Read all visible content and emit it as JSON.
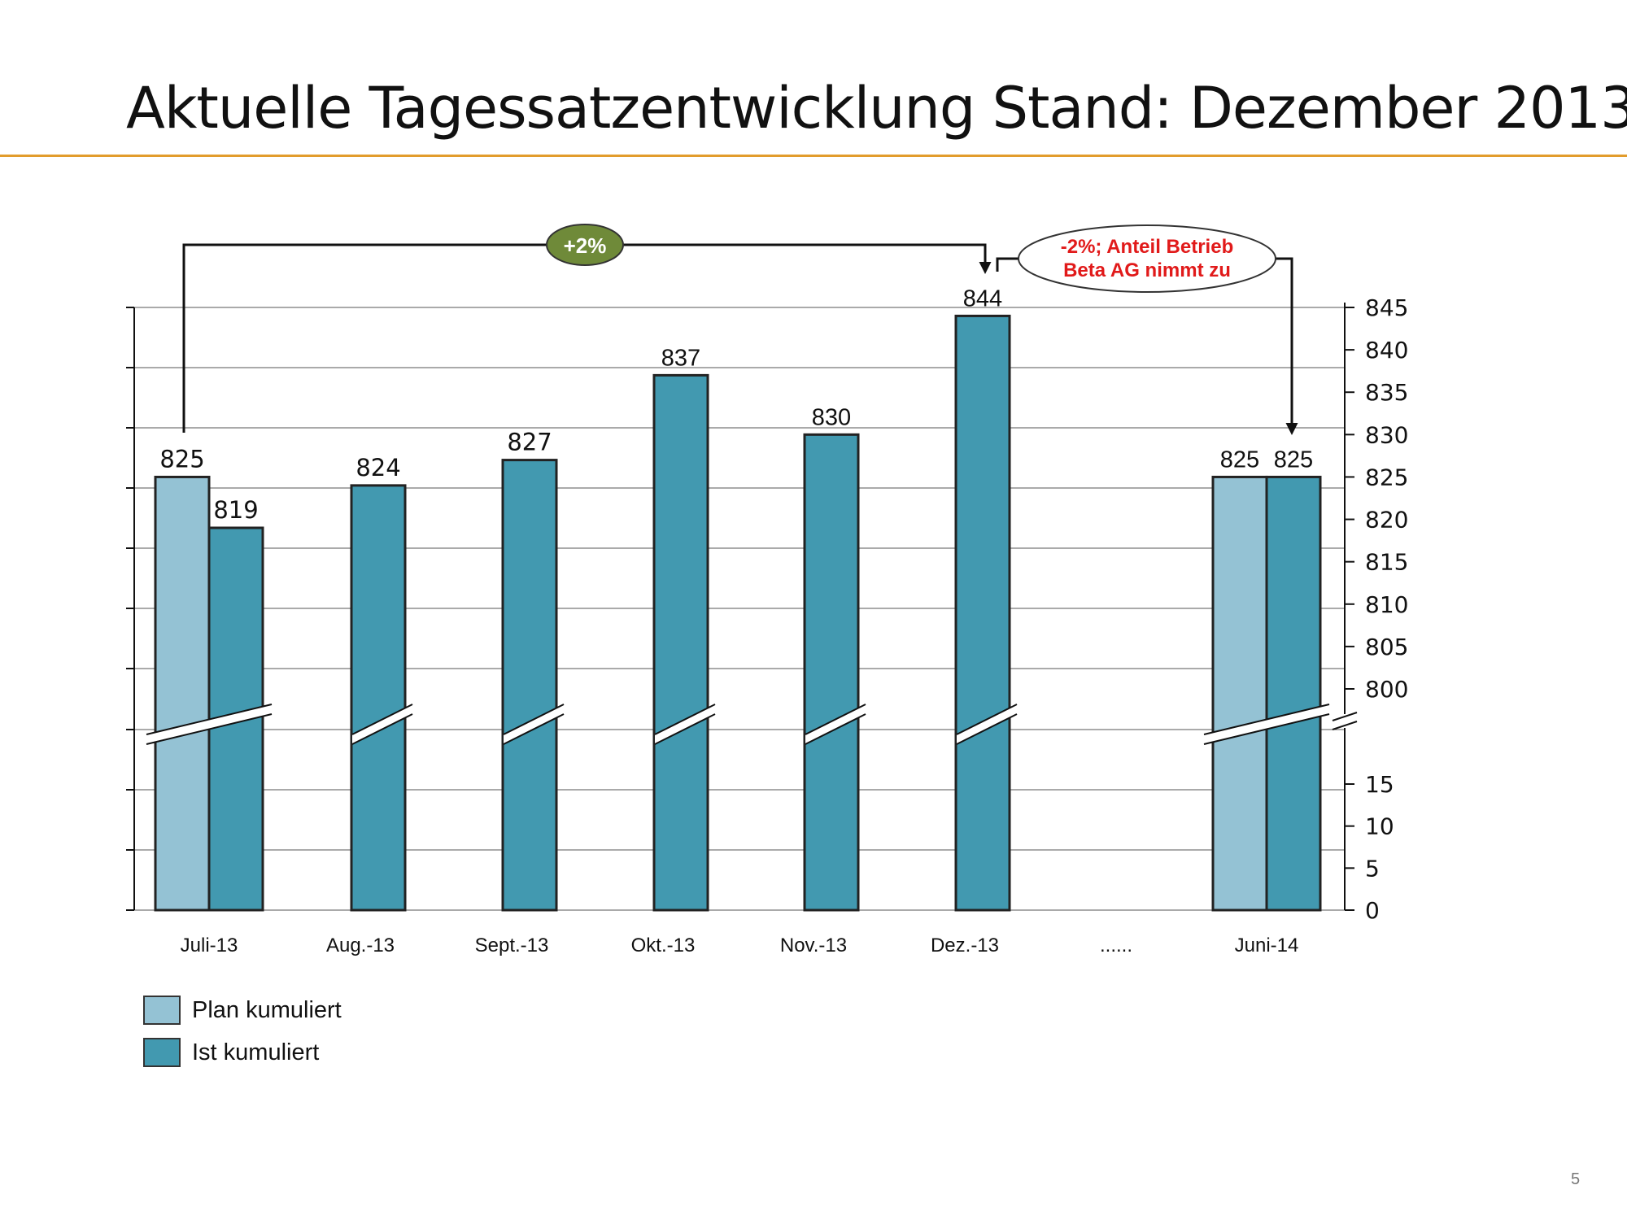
{
  "title": "Aktuelle Tagessatzentwicklung Stand: Dezember 2013",
  "page_number": "5",
  "colors": {
    "plan": "#94c2d4",
    "ist": "#4299b0",
    "accent_rule": "#e29c2c",
    "badge_green": "#6f8a39",
    "callout_red": "#e11a1a"
  },
  "annotations": {
    "growth_badge": "+2%",
    "callout_line1": "-2%; Anteil Betrieb",
    "callout_line2": "Beta AG nimmt zu"
  },
  "legend": {
    "plan_label": "Plan kumuliert",
    "ist_label": "Ist kumuliert"
  },
  "chart_data": {
    "type": "bar",
    "categories": [
      "Juli-13",
      "Aug.-13",
      "Sept.-13",
      "Okt.-13",
      "Nov.-13",
      "Dez.-13",
      "......",
      "Juni-14"
    ],
    "series": [
      {
        "name": "Plan kumuliert",
        "values": [
          825,
          null,
          null,
          null,
          null,
          null,
          null,
          825
        ]
      },
      {
        "name": "Ist kumuliert",
        "values": [
          819,
          824,
          827,
          837,
          830,
          844,
          null,
          825
        ]
      }
    ],
    "y_axis_position": "right",
    "y_axis_break": "between 15 and 800",
    "y_ticks_upper": [
      800,
      805,
      810,
      815,
      820,
      825,
      830,
      835,
      840,
      845
    ],
    "y_ticks_lower": [
      0,
      5,
      10,
      15
    ],
    "ylim_upper": [
      800,
      845
    ],
    "ylim_lower": [
      0,
      15
    ],
    "grid": true,
    "legend_position": "bottom-left"
  }
}
